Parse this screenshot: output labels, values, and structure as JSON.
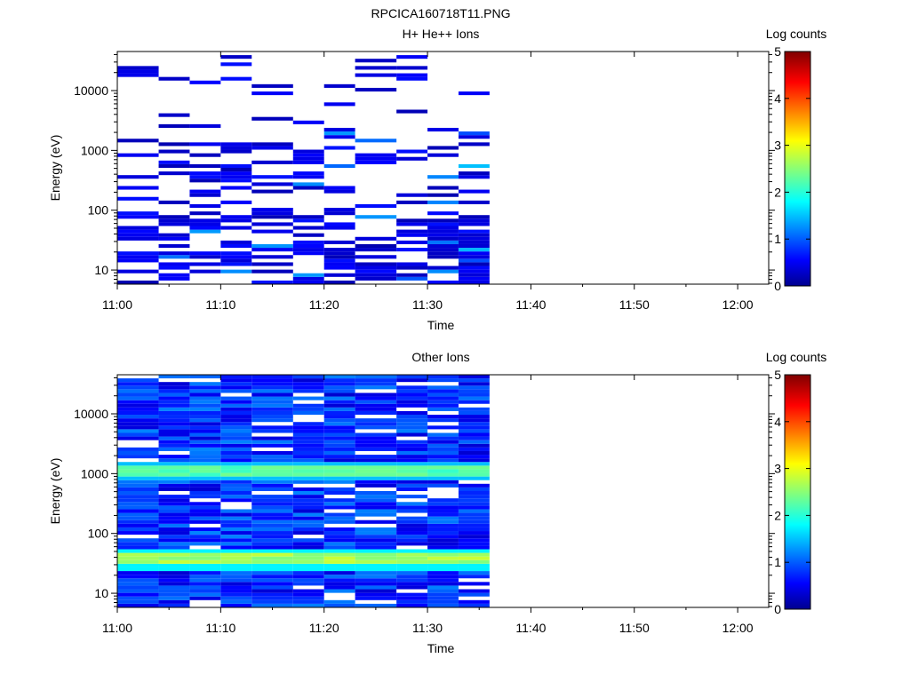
{
  "figure_title": "RPCICA160718T11.PNG",
  "chart_data": [
    {
      "type": "heatmap",
      "title": "H+ He++ Ions",
      "xlabel": "Time",
      "ylabel": "Energy (eV)",
      "x_ticks": [
        "11:00",
        "11:10",
        "11:20",
        "11:30",
        "11:40",
        "11:50",
        "12:00"
      ],
      "x_range": [
        "11:00",
        "12:03"
      ],
      "y_scale": "log",
      "y_ticks": [
        "10",
        "100",
        "1000",
        "10000"
      ],
      "y_range": [
        5.8,
        45000
      ],
      "data_time_range": [
        "11:00",
        "11:36"
      ],
      "time_bins": [
        "11:00",
        "11:04",
        "11:07",
        "11:10",
        "11:13",
        "11:17",
        "11:20",
        "11:23",
        "11:27",
        "11:30",
        "11:33"
      ],
      "colorbar": {
        "label": "Log counts",
        "range": [
          0,
          5
        ],
        "ticks": [
          "0",
          "1",
          "2",
          "3",
          "4",
          "5"
        ],
        "colormap": "jet",
        "colors": [
          "#00008f",
          "#0000ff",
          "#00ffff",
          "#ffff00",
          "#ff0000",
          "#800000"
        ]
      },
      "dominant_log_count": 0.4,
      "peak_log_count": 1.5,
      "data_coverage": "sparse"
    },
    {
      "type": "heatmap",
      "title": "Other Ions",
      "xlabel": "Time",
      "ylabel": "Energy (eV)",
      "x_ticks": [
        "11:00",
        "11:10",
        "11:20",
        "11:30",
        "11:40",
        "11:50",
        "12:00"
      ],
      "x_range": [
        "11:00",
        "12:03"
      ],
      "y_scale": "log",
      "y_ticks": [
        "10",
        "100",
        "1000",
        "10000"
      ],
      "y_range": [
        5.8,
        45000
      ],
      "data_time_range": [
        "11:00",
        "11:36"
      ],
      "time_bins": [
        "11:00",
        "11:04",
        "11:07",
        "11:10",
        "11:13",
        "11:17",
        "11:20",
        "11:23",
        "11:27",
        "11:30",
        "11:33"
      ],
      "colorbar": {
        "label": "Log counts",
        "range": [
          0,
          5
        ],
        "ticks": [
          "0",
          "1",
          "2",
          "3",
          "4",
          "5"
        ],
        "colormap": "jet",
        "colors": [
          "#00008f",
          "#0000ff",
          "#00ffff",
          "#ffff00",
          "#ff0000",
          "#800000"
        ]
      },
      "bands": [
        {
          "energy_eV": 1100,
          "log_counts": 2.3
        },
        {
          "energy_eV": 38,
          "log_counts": 2.7
        }
      ],
      "background_log_count": 0.8,
      "data_coverage": "dense"
    }
  ]
}
